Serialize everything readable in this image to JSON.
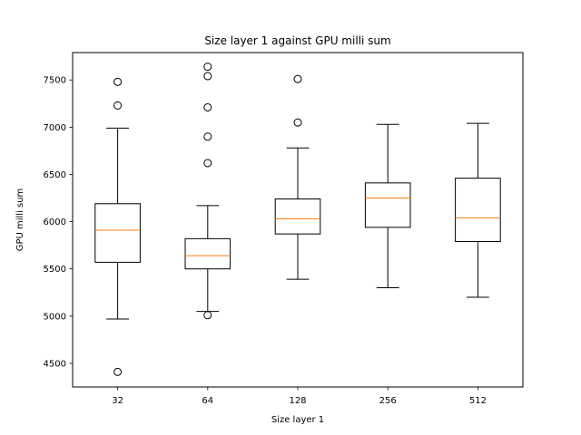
{
  "chart_data": {
    "type": "box",
    "title": "Size layer 1 against GPU milli sum",
    "xlabel": "Size layer 1",
    "ylabel": "GPU milli sum",
    "categories": [
      "32",
      "64",
      "128",
      "256",
      "512"
    ],
    "ylim": [
      4250,
      7790
    ],
    "yticks": [
      4500,
      5000,
      5500,
      6000,
      6500,
      7000,
      7500
    ],
    "ytick_labels": [
      "4500",
      "5000",
      "5500",
      "6000",
      "6500",
      "7000",
      "7500"
    ],
    "grid": false,
    "box_color": "#000000",
    "median_color": "#ff7f0e",
    "boxes": [
      {
        "category": "32",
        "whisker_low": 4970,
        "q1": 5570,
        "median": 5910,
        "q3": 6190,
        "whisker_high": 6990,
        "outliers": [
          4410,
          7230,
          7480
        ]
      },
      {
        "category": "64",
        "whisker_low": 5050,
        "q1": 5500,
        "median": 5640,
        "q3": 5820,
        "whisker_high": 6170,
        "outliers": [
          5010,
          6620,
          6900,
          7210,
          7540,
          7640
        ]
      },
      {
        "category": "128",
        "whisker_low": 5390,
        "q1": 5870,
        "median": 6030,
        "q3": 6240,
        "whisker_high": 6780,
        "outliers": [
          7050,
          7510
        ]
      },
      {
        "category": "256",
        "whisker_low": 5300,
        "q1": 5940,
        "median": 6250,
        "q3": 6410,
        "whisker_high": 7030,
        "outliers": []
      },
      {
        "category": "512",
        "whisker_low": 5200,
        "q1": 5790,
        "median": 6040,
        "q3": 6460,
        "whisker_high": 7040,
        "outliers": []
      }
    ]
  }
}
